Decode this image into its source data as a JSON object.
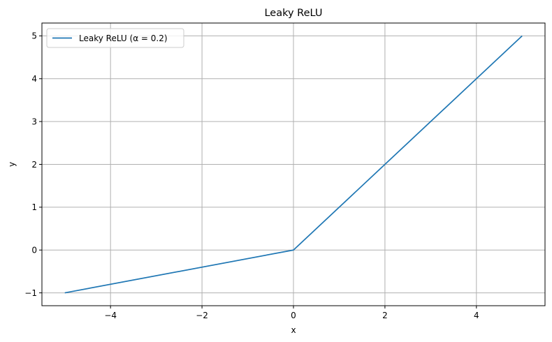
{
  "chart_data": {
    "type": "line",
    "title": "Leaky ReLU",
    "xlabel": "x",
    "ylabel": "y",
    "xlim": [
      -5.5,
      5.5
    ],
    "ylim": [
      -1.3,
      5.3
    ],
    "xticks": [
      -4,
      -2,
      0,
      2,
      4
    ],
    "xtick_labels": [
      "−4",
      "−2",
      "0",
      "2",
      "4"
    ],
    "yticks": [
      -1,
      0,
      1,
      2,
      3,
      4,
      5
    ],
    "ytick_labels": [
      "−1",
      "0",
      "1",
      "2",
      "3",
      "4",
      "5"
    ],
    "grid": true,
    "legend_position": "top-left",
    "series": [
      {
        "name": "Leaky ReLU (α = 0.2)",
        "color": "#1f77b4",
        "x": [
          -5,
          0,
          5
        ],
        "y": [
          -1,
          0,
          5
        ]
      }
    ]
  }
}
